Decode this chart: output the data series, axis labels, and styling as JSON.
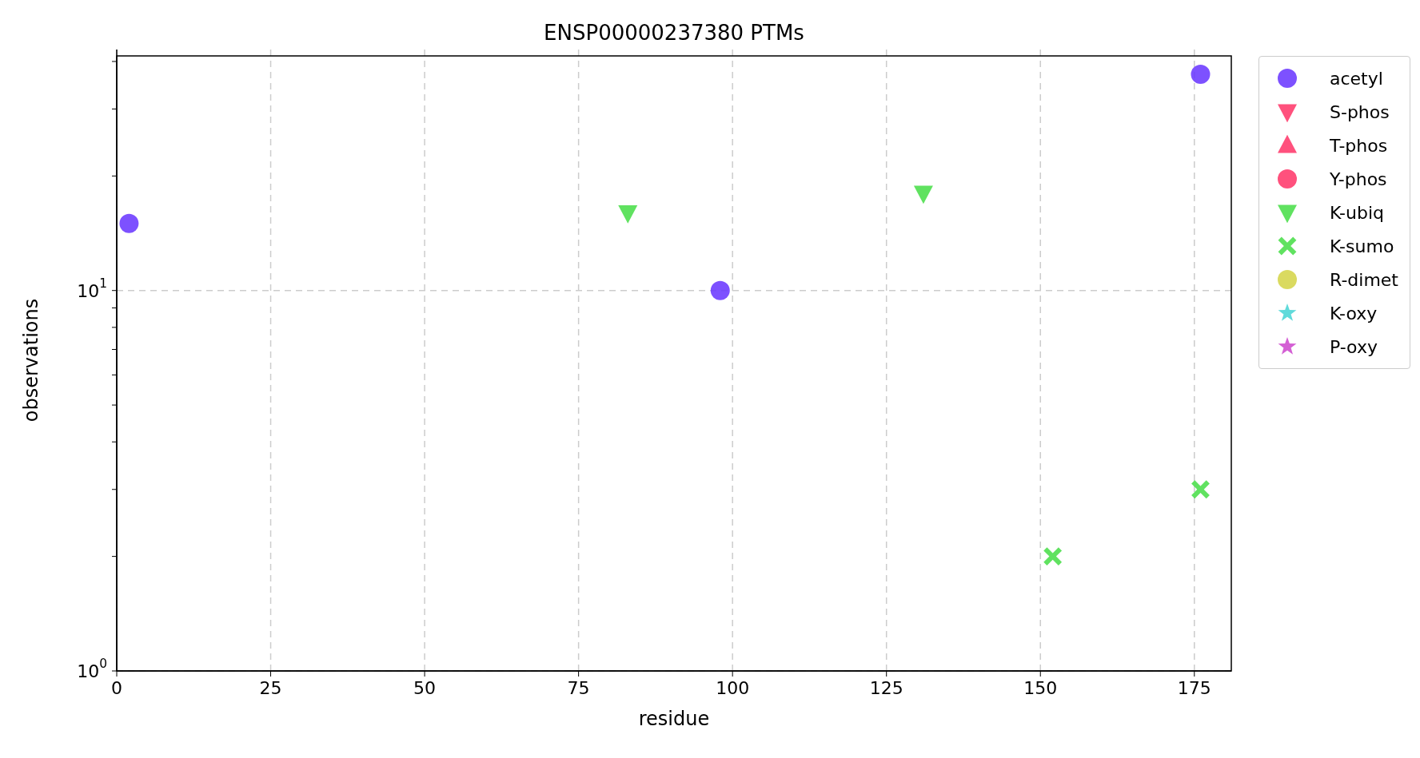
{
  "chart_data": {
    "type": "scatter",
    "title": "ENSP00000237380 PTMs",
    "xlabel": "residue",
    "ylabel": "observations",
    "xlim": [
      0,
      181
    ],
    "xticks": [
      0,
      25,
      50,
      75,
      100,
      125,
      150,
      175
    ],
    "ylim": [
      1,
      43
    ],
    "yticks": [
      {
        "value": 1,
        "label": "10$^{0}$"
      },
      {
        "value": 2,
        "label": null
      },
      {
        "value": 3,
        "label": null
      },
      {
        "value": 4,
        "label": null
      },
      {
        "value": 5,
        "label": null
      },
      {
        "value": 6,
        "label": null
      },
      {
        "value": 7,
        "label": null
      },
      {
        "value": 8,
        "label": null
      },
      {
        "value": 9,
        "label": null
      },
      {
        "value": 10,
        "label": "10$^{1}$"
      },
      {
        "value": 20,
        "label": null
      },
      {
        "value": 30,
        "label": null
      },
      {
        "value": 40,
        "label": null
      }
    ],
    "log": "y",
    "grid": true,
    "legend": "top right",
    "series": [
      {
        "name": "acetyl",
        "color": "#6633ff",
        "marker": "circle",
        "x": [
          2,
          98,
          176
        ],
        "values": [
          15,
          10,
          37
        ]
      },
      {
        "name": "S-phos",
        "color": "#ff3366",
        "marker": "triangle-down"
      },
      {
        "name": "T-phos",
        "color": "#ff3366",
        "marker": "triangle"
      },
      {
        "name": "Y-phos",
        "color": "#ff3366",
        "marker": "circle"
      },
      {
        "name": "K-ubiq",
        "color": "#44dd44",
        "marker": "triangle-down",
        "x": [
          83,
          131
        ],
        "values": [
          16,
          18
        ]
      },
      {
        "name": "K-sumo",
        "color": "#44dd44",
        "marker": "cross",
        "x": [
          152,
          176
        ],
        "values": [
          2,
          3
        ]
      },
      {
        "name": "R-dimet",
        "color": "#d4d444",
        "marker": "circle"
      },
      {
        "name": "K-oxy",
        "color": "#44d4d4",
        "marker": "star"
      },
      {
        "name": "P-oxy",
        "color": "#cc44cc",
        "marker": "star"
      }
    ]
  }
}
